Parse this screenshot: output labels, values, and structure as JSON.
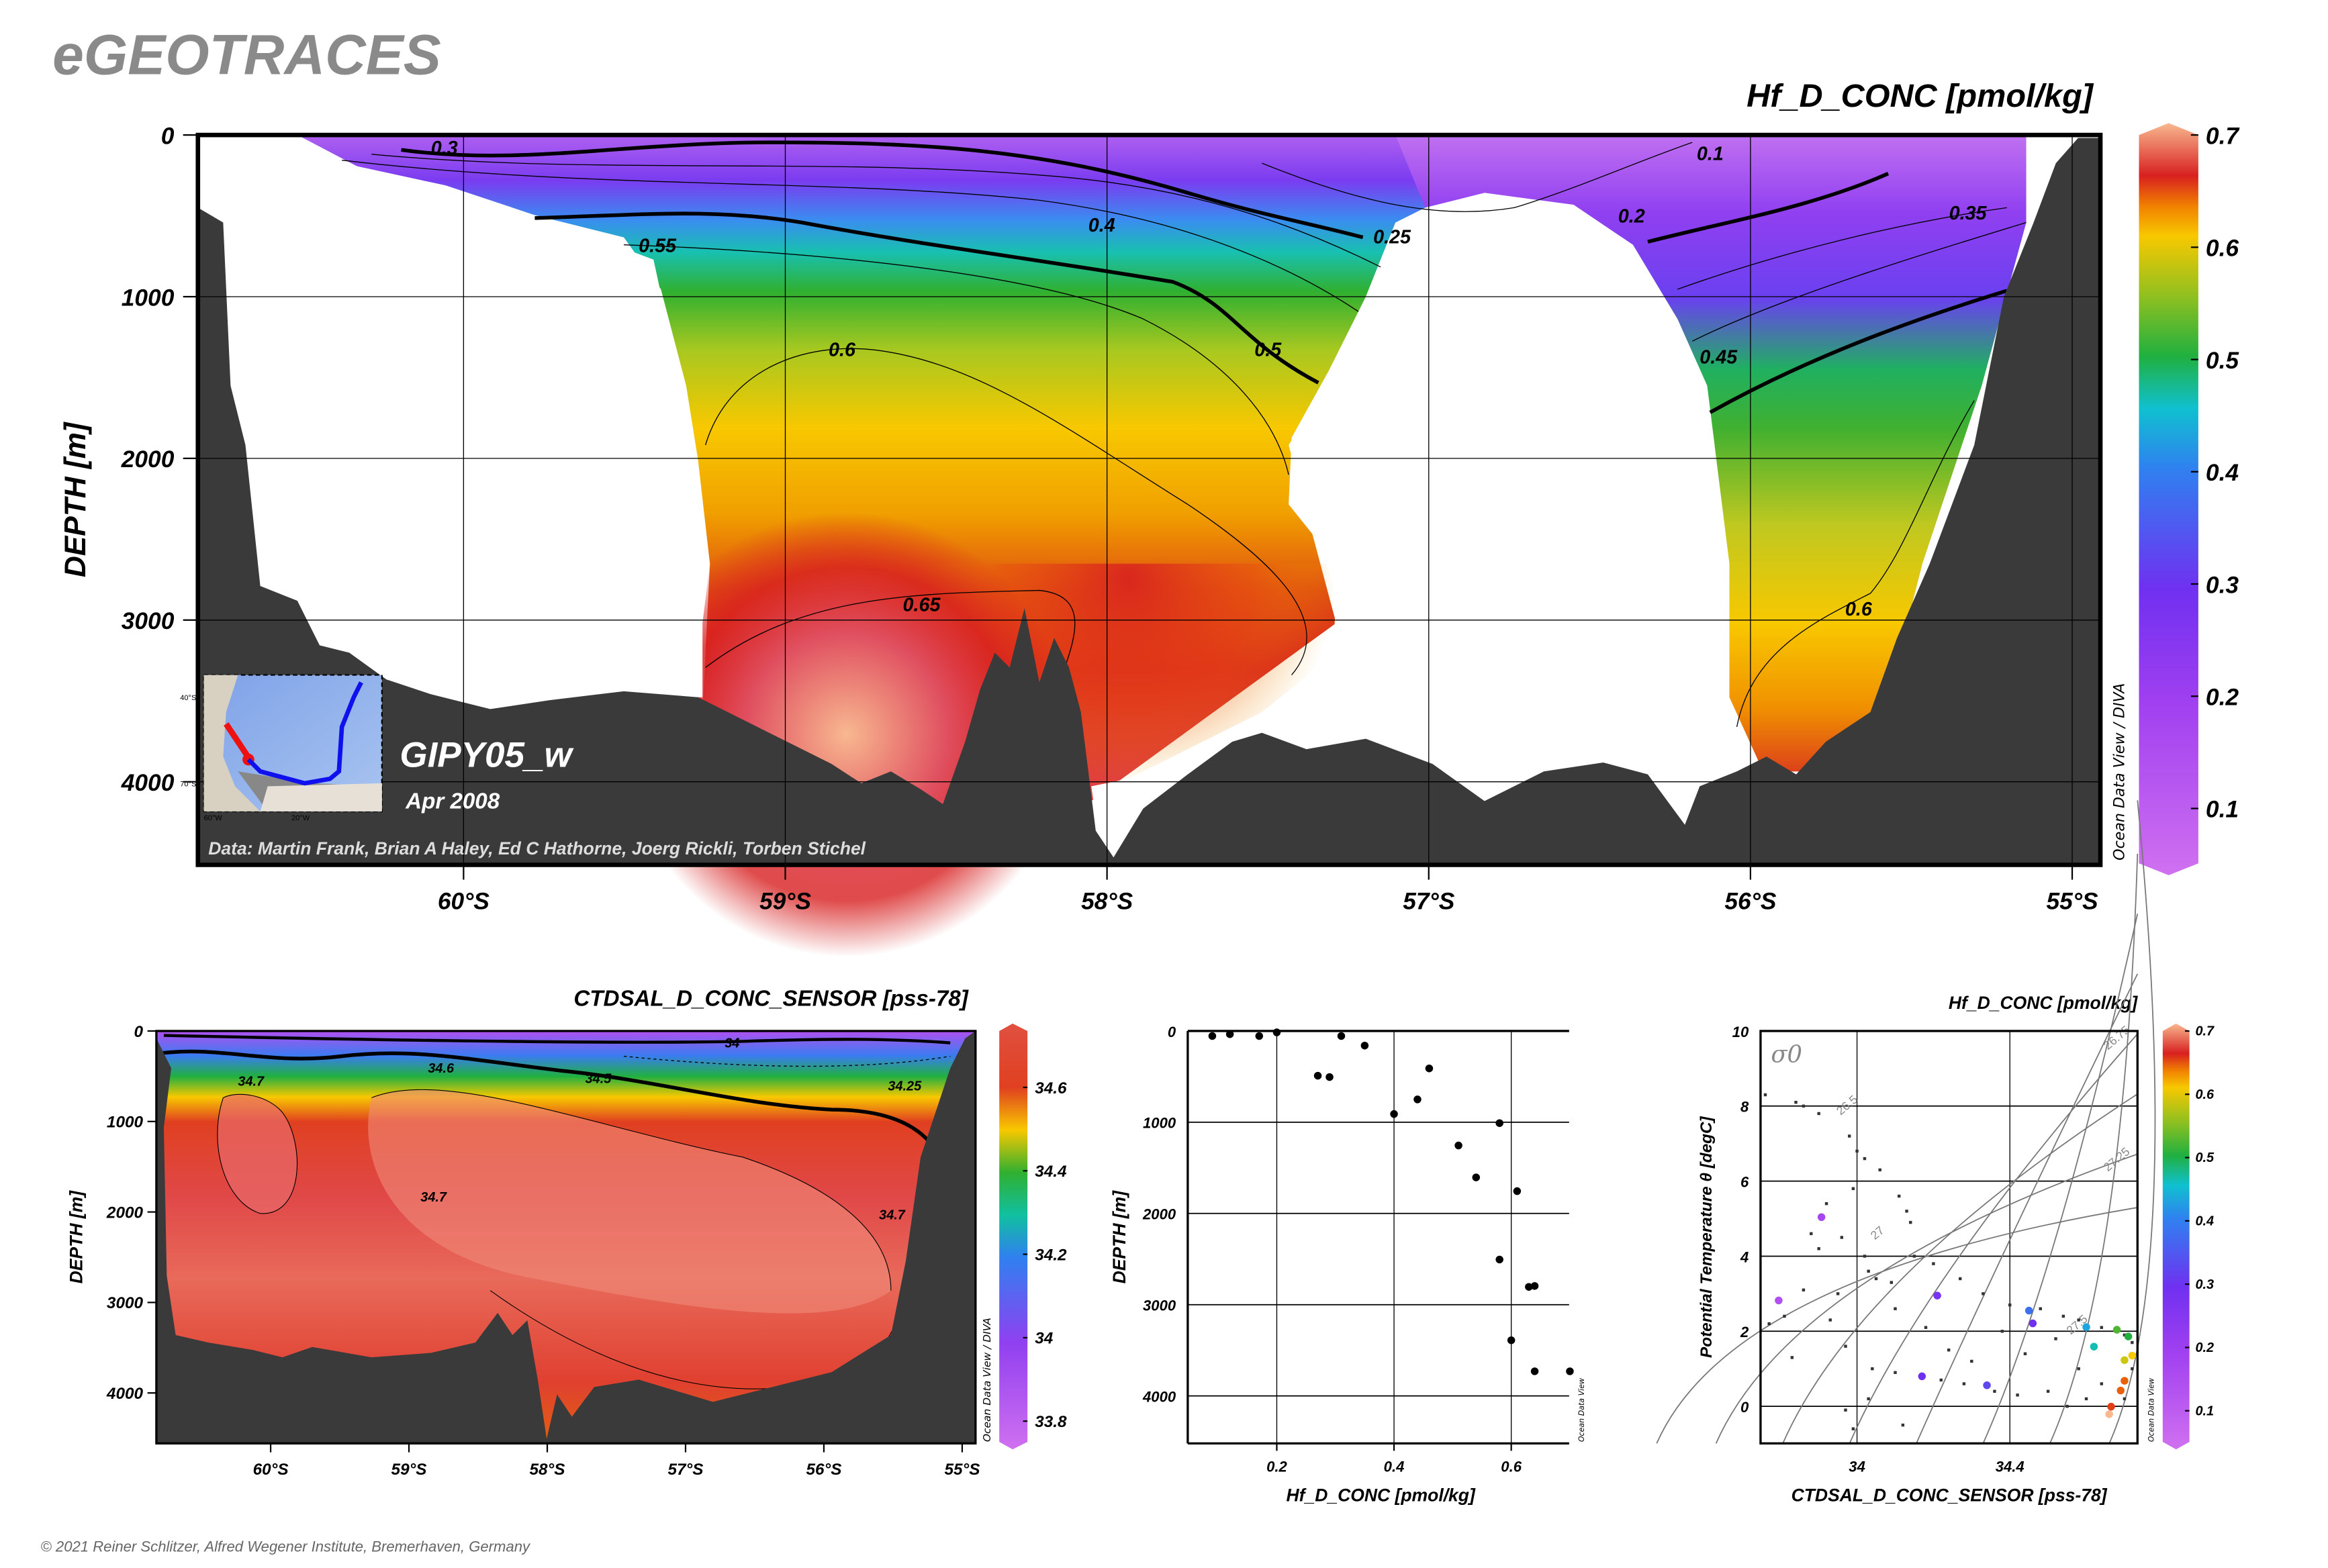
{
  "brand": "eGEOTRACES",
  "footer": "© 2021 Reiner Schlitzer, Alfred Wegener Institute, Bremerhaven, Germany",
  "colors": {
    "bathymetry": "#3a3a3a",
    "track_red": "#ee1111",
    "track_blue": "#1010ee"
  },
  "chart_data": [
    {
      "type": "heatmap",
      "title": "Hf_D_CONC [pmol/kg]",
      "ylabel": "DEPTH [m]",
      "xlabel": "",
      "x_ticks": [
        "60°S",
        "59°S",
        "58°S",
        "57°S",
        "56°S",
        "55°S"
      ],
      "x_tick_values": [
        -60,
        -59,
        -58,
        -57,
        -56,
        -55
      ],
      "y_ticks": [
        "0",
        "1000",
        "2000",
        "3000",
        "4000"
      ],
      "y_tick_values": [
        0,
        1000,
        2000,
        3000,
        4000
      ],
      "xlim": [
        -60.83,
        -54.91
      ],
      "ylim": [
        4500,
        0
      ],
      "grid": true,
      "colorbar": {
        "ticks": [
          "0.7",
          "0.6",
          "0.5",
          "0.4",
          "0.3",
          "0.2",
          "0.1"
        ],
        "tick_values": [
          0.7,
          0.6,
          0.5,
          0.4,
          0.3,
          0.2,
          0.1
        ],
        "range": [
          0.05,
          0.7
        ]
      },
      "contour_labels": [
        "0.3",
        "0.55",
        "0.4",
        "0.25",
        "0.5",
        "0.6",
        "0.65",
        "0.1",
        "0.2",
        "0.35",
        "0.45",
        "0.6"
      ],
      "section_name": "GIPY05_w",
      "date": "Apr 2008",
      "credits": "Data: Martin Frank, Brian A Haley, Ed C Hathorne, Joerg Rickli, Torben Stichel",
      "watermark": "Ocean Data View / DIVA",
      "inset_labels": [
        "40°S",
        "70°S",
        "60°W",
        "20°W"
      ]
    },
    {
      "type": "heatmap",
      "title": "CTDSAL_D_CONC_SENSOR [pss-78]",
      "ylabel": "DEPTH [m]",
      "x_ticks": [
        "60°S",
        "59°S",
        "58°S",
        "57°S",
        "56°S",
        "55°S"
      ],
      "x_tick_values": [
        -60,
        -59,
        -58,
        -57,
        -56,
        -55
      ],
      "y_ticks": [
        "0",
        "1000",
        "2000",
        "3000",
        "4000"
      ],
      "y_tick_values": [
        0,
        1000,
        2000,
        3000,
        4000
      ],
      "xlim": [
        -60.83,
        -54.9
      ],
      "ylim": [
        4500,
        0
      ],
      "grid": false,
      "colorbar": {
        "ticks": [
          "34.6",
          "34.4",
          "34.2",
          "34",
          "33.8"
        ],
        "tick_values": [
          34.6,
          34.4,
          34.2,
          34.0,
          33.8
        ],
        "range": [
          33.72,
          34.75
        ]
      },
      "contour_labels": [
        "34",
        "34.7",
        "34.6",
        "34.5",
        "34.25",
        "34.7",
        "34.7"
      ],
      "watermark": "Ocean Data View / DIVA"
    },
    {
      "type": "scatter",
      "xlabel": "Hf_D_CONC [pmol/kg]",
      "ylabel": "DEPTH [m]",
      "x_ticks": [
        "0.2",
        "0.4",
        "0.6"
      ],
      "x_tick_values": [
        0.2,
        0.4,
        0.6
      ],
      "y_ticks": [
        "0",
        "1000",
        "2000",
        "3000",
        "4000"
      ],
      "y_tick_values": [
        0,
        1000,
        2000,
        3000,
        4000
      ],
      "xlim": [
        0.05,
        0.7
      ],
      "ylim": [
        4530,
        0
      ],
      "grid": true,
      "watermark": "Ocean Data View",
      "points": [
        {
          "x": 0.09,
          "y": 55
        },
        {
          "x": 0.12,
          "y": 35
        },
        {
          "x": 0.17,
          "y": 55
        },
        {
          "x": 0.2,
          "y": 15
        },
        {
          "x": 0.31,
          "y": 55
        },
        {
          "x": 0.35,
          "y": 160
        },
        {
          "x": 0.27,
          "y": 490
        },
        {
          "x": 0.29,
          "y": 505
        },
        {
          "x": 0.46,
          "y": 410
        },
        {
          "x": 0.44,
          "y": 750
        },
        {
          "x": 0.4,
          "y": 910
        },
        {
          "x": 0.58,
          "y": 1010
        },
        {
          "x": 0.51,
          "y": 1255
        },
        {
          "x": 0.54,
          "y": 1605
        },
        {
          "x": 0.61,
          "y": 1755
        },
        {
          "x": 0.58,
          "y": 2505
        },
        {
          "x": 0.63,
          "y": 2805
        },
        {
          "x": 0.64,
          "y": 2795
        },
        {
          "x": 0.6,
          "y": 3390
        },
        {
          "x": 0.64,
          "y": 3730
        },
        {
          "x": 0.7,
          "y": 3730
        }
      ]
    },
    {
      "type": "scatter",
      "title": "Hf_D_CONC [pmol/kg]",
      "xlabel": "CTDSAL_D_CONC_SENSOR [pss-78]",
      "ylabel": "Potential Temperature θ [degC]",
      "x_ticks": [
        "34",
        "34.4"
      ],
      "x_tick_values": [
        34.0,
        34.4
      ],
      "y_ticks": [
        "10",
        "8",
        "6",
        "4",
        "2",
        "0"
      ],
      "y_tick_values": [
        10,
        8,
        6,
        4,
        2,
        0
      ],
      "xlim": [
        33.75,
        34.74
      ],
      "ylim": [
        -1,
        10
      ],
      "grid": true,
      "isopycnal_symbol": "σ0",
      "isopycnal_labels": [
        "26.5",
        "26.75",
        "27",
        "27.25",
        "27.5"
      ],
      "colorbar": {
        "ticks": [
          "0.7",
          "0.6",
          "0.5",
          "0.4",
          "0.3",
          "0.2",
          "0.1"
        ],
        "tick_values": [
          0.7,
          0.6,
          0.5,
          0.4,
          0.3,
          0.2,
          0.1
        ],
        "range": [
          0.05,
          0.7
        ]
      },
      "watermark": "Ocean Data View",
      "points": [
        {
          "x": 33.907,
          "y": 5.04,
          "value": 0.18
        },
        {
          "x": 33.795,
          "y": 2.82,
          "value": 0.15
        },
        {
          "x": 34.21,
          "y": 2.95,
          "value": 0.28
        },
        {
          "x": 34.45,
          "y": 2.55,
          "value": 0.38
        },
        {
          "x": 34.46,
          "y": 2.21,
          "value": 0.3
        },
        {
          "x": 34.6,
          "y": 2.11,
          "value": 0.43
        },
        {
          "x": 34.62,
          "y": 1.59,
          "value": 0.46
        },
        {
          "x": 34.68,
          "y": 2.04,
          "value": 0.52
        },
        {
          "x": 34.71,
          "y": 1.86,
          "value": 0.5
        },
        {
          "x": 34.7,
          "y": 1.23,
          "value": 0.58
        },
        {
          "x": 34.72,
          "y": 1.35,
          "value": 0.6
        },
        {
          "x": 34.7,
          "y": 0.68,
          "value": 0.64
        },
        {
          "x": 34.69,
          "y": 0.42,
          "value": 0.64
        },
        {
          "x": 34.665,
          "y": -0.01,
          "value": 0.65
        },
        {
          "x": 34.66,
          "y": -0.21,
          "value": 0.7
        },
        {
          "x": 34.17,
          "y": 0.8,
          "value": 0.3
        },
        {
          "x": 34.34,
          "y": 0.56,
          "value": 0.33
        }
      ],
      "background_points": [
        {
          "x": 33.76,
          "y": 8.3
        },
        {
          "x": 33.84,
          "y": 8.1
        },
        {
          "x": 33.86,
          "y": 8.0
        },
        {
          "x": 33.9,
          "y": 7.8
        },
        {
          "x": 33.98,
          "y": 7.2
        },
        {
          "x": 34.0,
          "y": 6.8
        },
        {
          "x": 34.02,
          "y": 6.6
        },
        {
          "x": 34.06,
          "y": 6.3
        },
        {
          "x": 33.99,
          "y": 5.8
        },
        {
          "x": 34.11,
          "y": 5.6
        },
        {
          "x": 34.13,
          "y": 5.2
        },
        {
          "x": 34.14,
          "y": 4.9
        },
        {
          "x": 33.92,
          "y": 5.4
        },
        {
          "x": 33.88,
          "y": 4.6
        },
        {
          "x": 33.9,
          "y": 4.2
        },
        {
          "x": 33.96,
          "y": 4.5
        },
        {
          "x": 34.02,
          "y": 4.0
        },
        {
          "x": 34.03,
          "y": 3.6
        },
        {
          "x": 34.05,
          "y": 3.4
        },
        {
          "x": 34.09,
          "y": 3.3
        },
        {
          "x": 34.15,
          "y": 4.0
        },
        {
          "x": 34.2,
          "y": 3.8
        },
        {
          "x": 34.27,
          "y": 3.4
        },
        {
          "x": 34.33,
          "y": 3.0
        },
        {
          "x": 34.4,
          "y": 2.7
        },
        {
          "x": 34.48,
          "y": 2.6
        },
        {
          "x": 34.54,
          "y": 2.4
        },
        {
          "x": 34.58,
          "y": 2.3
        },
        {
          "x": 34.64,
          "y": 2.1
        },
        {
          "x": 34.7,
          "y": 1.9
        },
        {
          "x": 34.72,
          "y": 1.7
        },
        {
          "x": 34.72,
          "y": 1.0
        },
        {
          "x": 34.7,
          "y": 0.2
        },
        {
          "x": 34.6,
          "y": 0.2
        },
        {
          "x": 34.5,
          "y": 0.4
        },
        {
          "x": 34.42,
          "y": 0.3
        },
        {
          "x": 34.36,
          "y": 0.4
        },
        {
          "x": 34.28,
          "y": 0.6
        },
        {
          "x": 34.22,
          "y": 0.7
        },
        {
          "x": 34.1,
          "y": 0.9
        },
        {
          "x": 34.04,
          "y": 1.0
        },
        {
          "x": 33.97,
          "y": 1.6
        },
        {
          "x": 33.93,
          "y": 2.3
        },
        {
          "x": 33.81,
          "y": 2.4
        },
        {
          "x": 33.77,
          "y": 2.2
        },
        {
          "x": 33.83,
          "y": 1.3
        },
        {
          "x": 33.97,
          "y": -0.1
        },
        {
          "x": 33.99,
          "y": -0.6
        },
        {
          "x": 34.03,
          "y": 0.2
        },
        {
          "x": 34.24,
          "y": 1.5
        },
        {
          "x": 34.3,
          "y": 1.2
        },
        {
          "x": 34.44,
          "y": 1.4
        },
        {
          "x": 34.52,
          "y": 1.8
        },
        {
          "x": 34.58,
          "y": 1.0
        },
        {
          "x": 34.64,
          "y": 0.6
        },
        {
          "x": 34.18,
          "y": 2.1
        },
        {
          "x": 34.1,
          "y": 2.6
        },
        {
          "x": 33.95,
          "y": 3.0
        },
        {
          "x": 33.86,
          "y": 3.1
        },
        {
          "x": 34.12,
          "y": -0.5
        },
        {
          "x": 34.38,
          "y": 2.0
        },
        {
          "x": 34.55,
          "y": 0.0
        }
      ]
    }
  ]
}
